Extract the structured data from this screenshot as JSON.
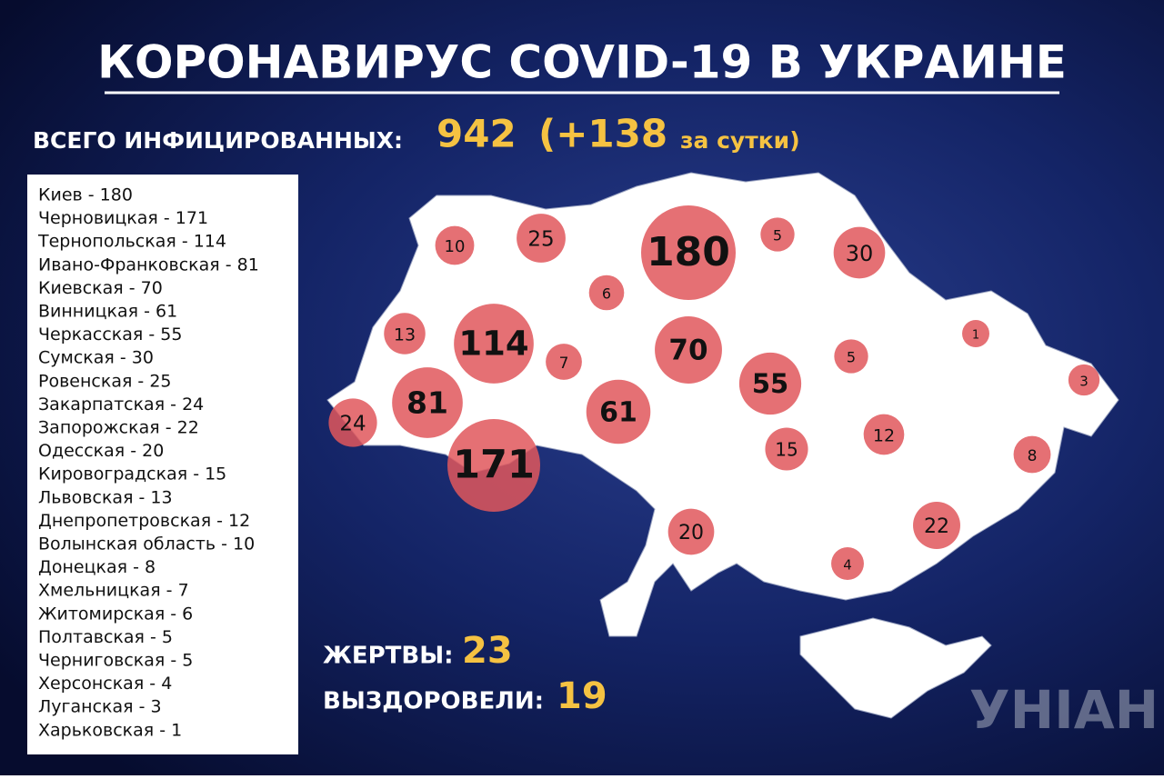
{
  "title": "КОРОНАВИРУС COVID-19 В УКРАИНЕ",
  "total": {
    "label": "ВСЕГО ИНФИЦИРОВАННЫХ:",
    "value": 942,
    "increase": "(+138",
    "increase_note": "за сутки)"
  },
  "list": [
    "Киев - 180",
    "Черновицкая - 171",
    "Тернопольская - 114",
    "Ивано-Франковская - 81",
    "Киевская - 70",
    "Винницкая - 61",
    "Черкасская - 55",
    "Сумская - 30",
    "Ровенская - 25",
    "Закарпатская - 24",
    "Запорожская - 22",
    "Одесская - 20",
    "Кировоградская - 15",
    "Львовская - 13",
    "Днепропетровская - 12",
    "Волынская область - 10",
    "Донецкая - 8",
    "Хмельницкая - 7",
    "Житомирская - 6",
    "Полтавская - 5",
    "Черниговская - 5",
    "Херсонская - 4",
    "Луганская - 3",
    "Харьковская - 1"
  ],
  "bubbles": [
    10,
    25,
    180,
    5,
    30,
    6,
    13,
    114,
    7,
    70,
    1,
    5,
    55,
    3,
    81,
    61,
    24,
    12,
    15,
    8,
    171,
    20,
    22,
    4
  ],
  "stats": {
    "deaths_label": "ЖЕРТВЫ:",
    "deaths": 23,
    "recovered_label": "ВЫЗДОРОВЕЛИ:",
    "recovered": 19
  },
  "logo": "УНІАН"
}
